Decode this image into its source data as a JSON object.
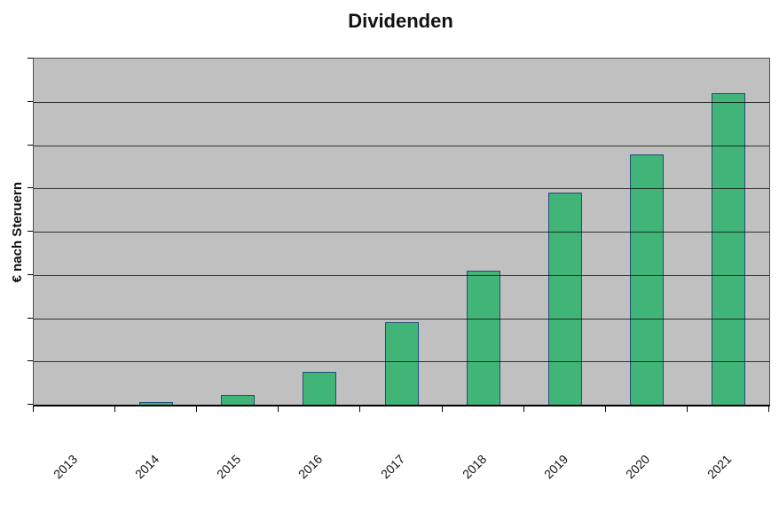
{
  "title": "Dividenden",
  "chart_data": {
    "type": "bar",
    "title": "Dividenden",
    "categories": [
      "2013",
      "2014",
      "2015",
      "2016",
      "2017",
      "2018",
      "2019",
      "2020",
      "2021"
    ],
    "values": [
      0,
      0.07,
      0.23,
      0.76,
      1.91,
      3.1,
      4.9,
      5.78,
      7.19
    ],
    "value_note": "y-axis has no numeric tick labels; values are in gridline units (1 unit = 1 horizontal gridline interval, plot spans 8 intervals)",
    "xlabel": "",
    "ylabel": "€ nach Steruern",
    "ylim": [
      0,
      8
    ],
    "y_tick_labels_visible": false,
    "gridlines": "horizontal",
    "gridline_intervals": 8,
    "legend_position": "none",
    "x_label_rotation_deg": 45,
    "colors": {
      "bar_fill": "#41b478",
      "bar_border": "#1f4e79",
      "plot_background": "#c0c0c0",
      "gridline": "#0a0a0a",
      "axis": "#000000",
      "text": "#111111",
      "page_background": "#ffffff"
    }
  }
}
